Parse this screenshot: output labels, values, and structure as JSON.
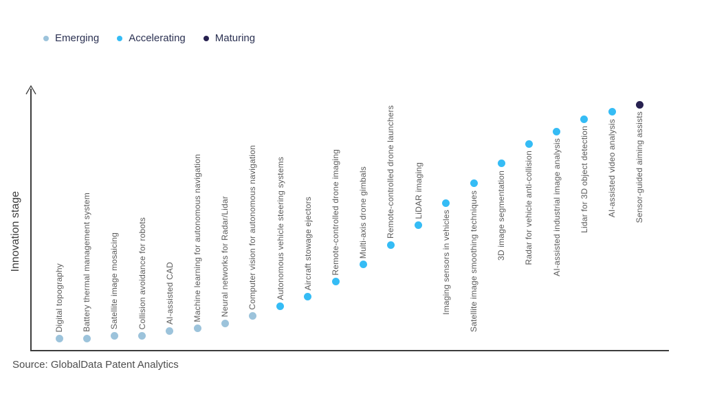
{
  "legend": {
    "items": [
      {
        "label": "Emerging",
        "color": "#9cc3db"
      },
      {
        "label": "Accelerating",
        "color": "#35bcf5"
      },
      {
        "label": "Maturing",
        "color": "#272150"
      }
    ]
  },
  "chart_data": {
    "type": "scatter",
    "title": "",
    "xlabel": "",
    "ylabel": "Innovation stage",
    "y_axis_kind": "qualitative (no ticks): Emerging → Accelerating → Maturing, arrow pointing up",
    "legend_position": "top-left",
    "grid": false,
    "value_scale": "relative innovation-stage height, 0–100 (estimated from dot heights)",
    "points": [
      {
        "label": "Digital topography",
        "stage": "Emerging",
        "value": 5
      },
      {
        "label": "Battery thermal management system",
        "stage": "Emerging",
        "value": 5
      },
      {
        "label": "Satellite image mosaicing",
        "stage": "Emerging",
        "value": 6
      },
      {
        "label": "Collision avoidance for robots",
        "stage": "Emerging",
        "value": 6
      },
      {
        "label": "AI-assisted CAD",
        "stage": "Emerging",
        "value": 8
      },
      {
        "label": "Machine learning for autonomous navigation",
        "stage": "Emerging",
        "value": 9
      },
      {
        "label": "Neural networks for Radar/Lidar",
        "stage": "Emerging",
        "value": 11
      },
      {
        "label": "Computer vision for autonomous navigation",
        "stage": "Emerging",
        "value": 14
      },
      {
        "label": "Autonomous vehicle steering systems",
        "stage": "Accelerating",
        "value": 18
      },
      {
        "label": "Aircraft stowage ejectors",
        "stage": "Accelerating",
        "value": 22
      },
      {
        "label": "Remote-controlled drone imaging",
        "stage": "Accelerating",
        "value": 28
      },
      {
        "label": "Multi-axis drone gimbals",
        "stage": "Accelerating",
        "value": 35
      },
      {
        "label": "Remote-controlled drone launchers",
        "stage": "Accelerating",
        "value": 43
      },
      {
        "label": "LiDAR imaging",
        "stage": "Accelerating",
        "value": 51
      },
      {
        "label": "Imaging sensors in vehicles",
        "stage": "Accelerating",
        "value": 60
      },
      {
        "label": "Satellite image smoothing techniques",
        "stage": "Accelerating",
        "value": 68
      },
      {
        "label": "3D image segmentation",
        "stage": "Accelerating",
        "value": 76
      },
      {
        "label": "Radar for vehicle anti-collision",
        "stage": "Accelerating",
        "value": 84
      },
      {
        "label": "AI-assisted industrial image analysis",
        "stage": "Accelerating",
        "value": 89
      },
      {
        "label": "Lidar for 3D object detection",
        "stage": "Accelerating",
        "value": 94
      },
      {
        "label": "AI-assisted video analysis",
        "stage": "Accelerating",
        "value": 97
      },
      {
        "label": "Sensor-guided aiming assists",
        "stage": "Maturing",
        "value": 100
      }
    ]
  },
  "source": "Source: GlobalData Patent Analytics"
}
